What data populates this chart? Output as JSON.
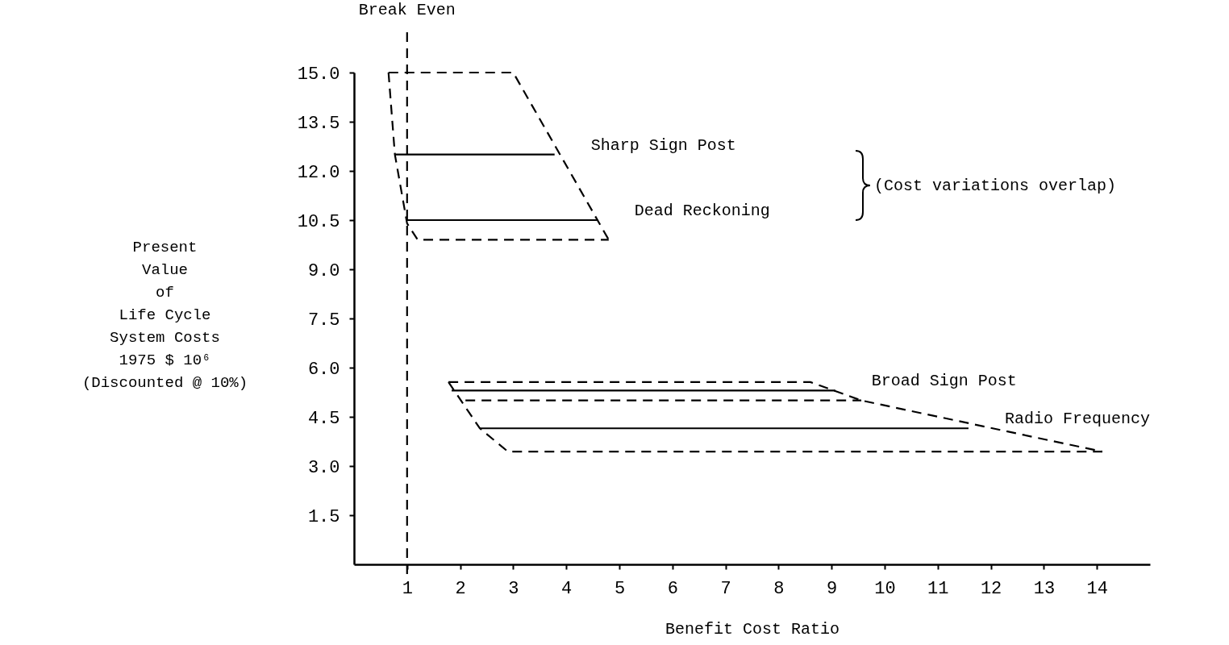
{
  "chart_data": {
    "type": "line",
    "xlabel": "Benefit Cost Ratio",
    "ylabel": "Present\nValue\nof\nLife Cycle\nSystem Costs\n1975 $ 10⁶\n\n(Discounted @ 10%)",
    "xlim": [
      0,
      15
    ],
    "ylim": [
      0,
      15
    ],
    "xticks": [
      1,
      2,
      3,
      4,
      5,
      6,
      7,
      8,
      9,
      10,
      11,
      12,
      13,
      14
    ],
    "yticks": [
      {
        "value": 1.5,
        "label": "1.5"
      },
      {
        "value": 3,
        "label": "3.0"
      },
      {
        "value": 4.5,
        "label": "4.5"
      },
      {
        "value": 6,
        "label": "6.0"
      },
      {
        "value": 7.5,
        "label": "7.5"
      },
      {
        "value": 9,
        "label": "9.0"
      },
      {
        "value": 10.5,
        "label": "10.5"
      },
      {
        "value": 12,
        "label": "12.0"
      },
      {
        "value": 13.5,
        "label": "13.5"
      },
      {
        "value": 15,
        "label": "15.0"
      }
    ],
    "grid": false,
    "legend": false,
    "marker": "none",
    "ref_lines": [
      {
        "axis": "x",
        "value": 1,
        "label": "Break Even",
        "line_style": "dashed",
        "color": "#000000"
      }
    ],
    "annotations": [
      "(Cost variations overlap)"
    ],
    "series": [
      {
        "type": "line",
        "color": "#000000",
        "line_style": "dashed",
        "x": [
          0.65,
          3.0,
          4.8
        ],
        "values": [
          15.0,
          15.0,
          9.9
        ]
      },
      {
        "type": "line",
        "color": "#000000",
        "line_style": "dashed",
        "x": [
          0.65,
          0.77,
          1.0,
          1.2,
          4.8
        ],
        "values": [
          15.0,
          12.5,
          10.4,
          9.9,
          9.9
        ]
      },
      {
        "type": "line",
        "color": "#000000",
        "line_style": "dashed",
        "x": [
          1.78,
          8.6,
          9.56,
          14.1
        ],
        "values": [
          5.56,
          5.56,
          5.0,
          3.44
        ]
      },
      {
        "type": "line",
        "color": "#000000",
        "line_style": "dashed",
        "x": [
          1.78,
          2.37,
          2.9,
          14.1
        ],
        "values": [
          5.56,
          4.15,
          3.44,
          3.44
        ]
      },
      {
        "type": "line",
        "color": "#000000",
        "line_style": "dashed",
        "x": [
          2.1,
          9.56
        ],
        "values": [
          5.0,
          5.0
        ]
      },
      {
        "type": "line",
        "name": "Sharp Sign Post",
        "color": "#000000",
        "line_style": "solid",
        "x": [
          0.77,
          3.78
        ],
        "values": [
          12.5,
          12.5
        ]
      },
      {
        "type": "line",
        "name": "Dead Reckoning",
        "color": "#000000",
        "line_style": "solid",
        "x": [
          1.0,
          4.6
        ],
        "values": [
          10.5,
          10.5
        ]
      },
      {
        "type": "line",
        "name": "Broad Sign Post",
        "color": "#000000",
        "line_style": "solid",
        "x": [
          1.84,
          9.07
        ],
        "values": [
          5.3,
          5.3
        ]
      },
      {
        "type": "line",
        "name": "Radio Frequency",
        "color": "#000000",
        "line_style": "solid",
        "x": [
          2.37,
          11.58
        ],
        "values": [
          4.15,
          4.15
        ]
      }
    ]
  }
}
